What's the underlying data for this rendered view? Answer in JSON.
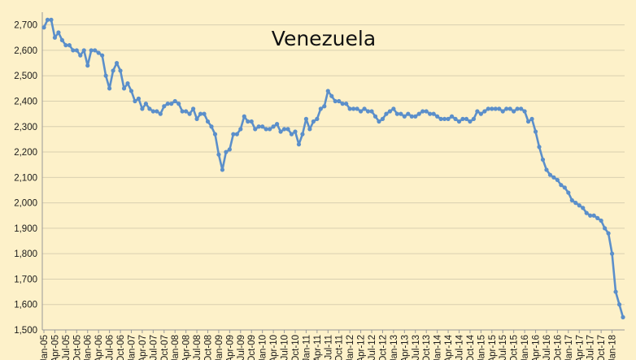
{
  "chart_data": {
    "type": "line",
    "title": "Venezuela",
    "xlabel": "",
    "ylabel": "",
    "ylim": [
      1500,
      2750
    ],
    "yticks": [
      1500,
      1600,
      1700,
      1800,
      1900,
      2000,
      2100,
      2200,
      2300,
      2400,
      2500,
      2600,
      2700
    ],
    "ytick_labels": [
      "1,500",
      "1,600",
      "1,700",
      "1,800",
      "1,900",
      "2,000",
      "2,100",
      "2,200",
      "2,300",
      "2,400",
      "2,500",
      "2,600",
      "2,700"
    ],
    "xtick_labels": [
      "Jan-05",
      "Apr-05",
      "Jul-05",
      "Oct-05",
      "Jan-06",
      "Apr-06",
      "Jul-06",
      "Oct-06",
      "Jan-07",
      "Apr-07",
      "Jul-07",
      "Oct-07",
      "Jan-08",
      "Apr-08",
      "Jul-08",
      "Oct-08",
      "Jan-09",
      "Apr-09",
      "Jul-09",
      "Oct-09",
      "Jan-10",
      "Apr-10",
      "Jul-10",
      "Oct-10",
      "Jan-11",
      "Apr-11",
      "Jul-11",
      "Oct-11",
      "Jan-12",
      "Apr-12",
      "Jul-12",
      "Oct-12",
      "Jan-13",
      "Apr-13",
      "Jul-13",
      "Oct-13",
      "Jan-14",
      "Apr-14",
      "Jul-14",
      "Oct-14",
      "Jan-15",
      "Apr-15",
      "Jul-15",
      "Oct-15",
      "Jan-16",
      "Apr-16",
      "Jul-16",
      "Oct-16",
      "Jan-17",
      "Apr-17",
      "Jul-17",
      "Oct-17",
      "Jan-18"
    ],
    "grid": true,
    "colors": {
      "line": "#5b8fca",
      "grid": "#d9d0b0",
      "background": "#fdf1c9",
      "axis": "#999999"
    },
    "series": [
      {
        "values": [
          2690,
          2720,
          2720,
          2650,
          2670,
          2640,
          2620,
          2620,
          2600,
          2600,
          2580,
          2600,
          2540,
          2600,
          2600,
          2590,
          2580,
          2500,
          2450,
          2520,
          2550,
          2520,
          2450,
          2470,
          2440,
          2400,
          2410,
          2370,
          2390,
          2370,
          2360,
          2360,
          2350,
          2380,
          2390,
          2390,
          2400,
          2390,
          2360,
          2360,
          2350,
          2370,
          2330,
          2350,
          2350,
          2320,
          2300,
          2270,
          2190,
          2130,
          2200,
          2210,
          2270,
          2270,
          2290,
          2340,
          2320,
          2320,
          2290,
          2300,
          2300,
          2290,
          2290,
          2300,
          2310,
          2280,
          2290,
          2290,
          2270,
          2280,
          2230,
          2270,
          2330,
          2290,
          2320,
          2330,
          2370,
          2380,
          2440,
          2420,
          2400,
          2400,
          2390,
          2390,
          2370,
          2370,
          2370,
          2360,
          2370,
          2360,
          2360,
          2340,
          2320,
          2330,
          2350,
          2360,
          2370,
          2350,
          2350,
          2340,
          2350,
          2340,
          2340,
          2350,
          2360,
          2360,
          2350,
          2350,
          2340,
          2330,
          2330,
          2330,
          2340,
          2330,
          2320,
          2330,
          2330,
          2320,
          2330,
          2360,
          2350,
          2360,
          2370,
          2370,
          2370,
          2370,
          2360,
          2370,
          2370,
          2360,
          2370,
          2370,
          2360,
          2320,
          2330,
          2280,
          2220,
          2170,
          2130,
          2110,
          2100,
          2090,
          2070,
          2060,
          2040,
          2010,
          2000,
          1990,
          1980,
          1960,
          1950,
          1950,
          1940,
          1930,
          1900,
          1880,
          1800,
          1650,
          1600,
          1550
        ]
      }
    ]
  }
}
